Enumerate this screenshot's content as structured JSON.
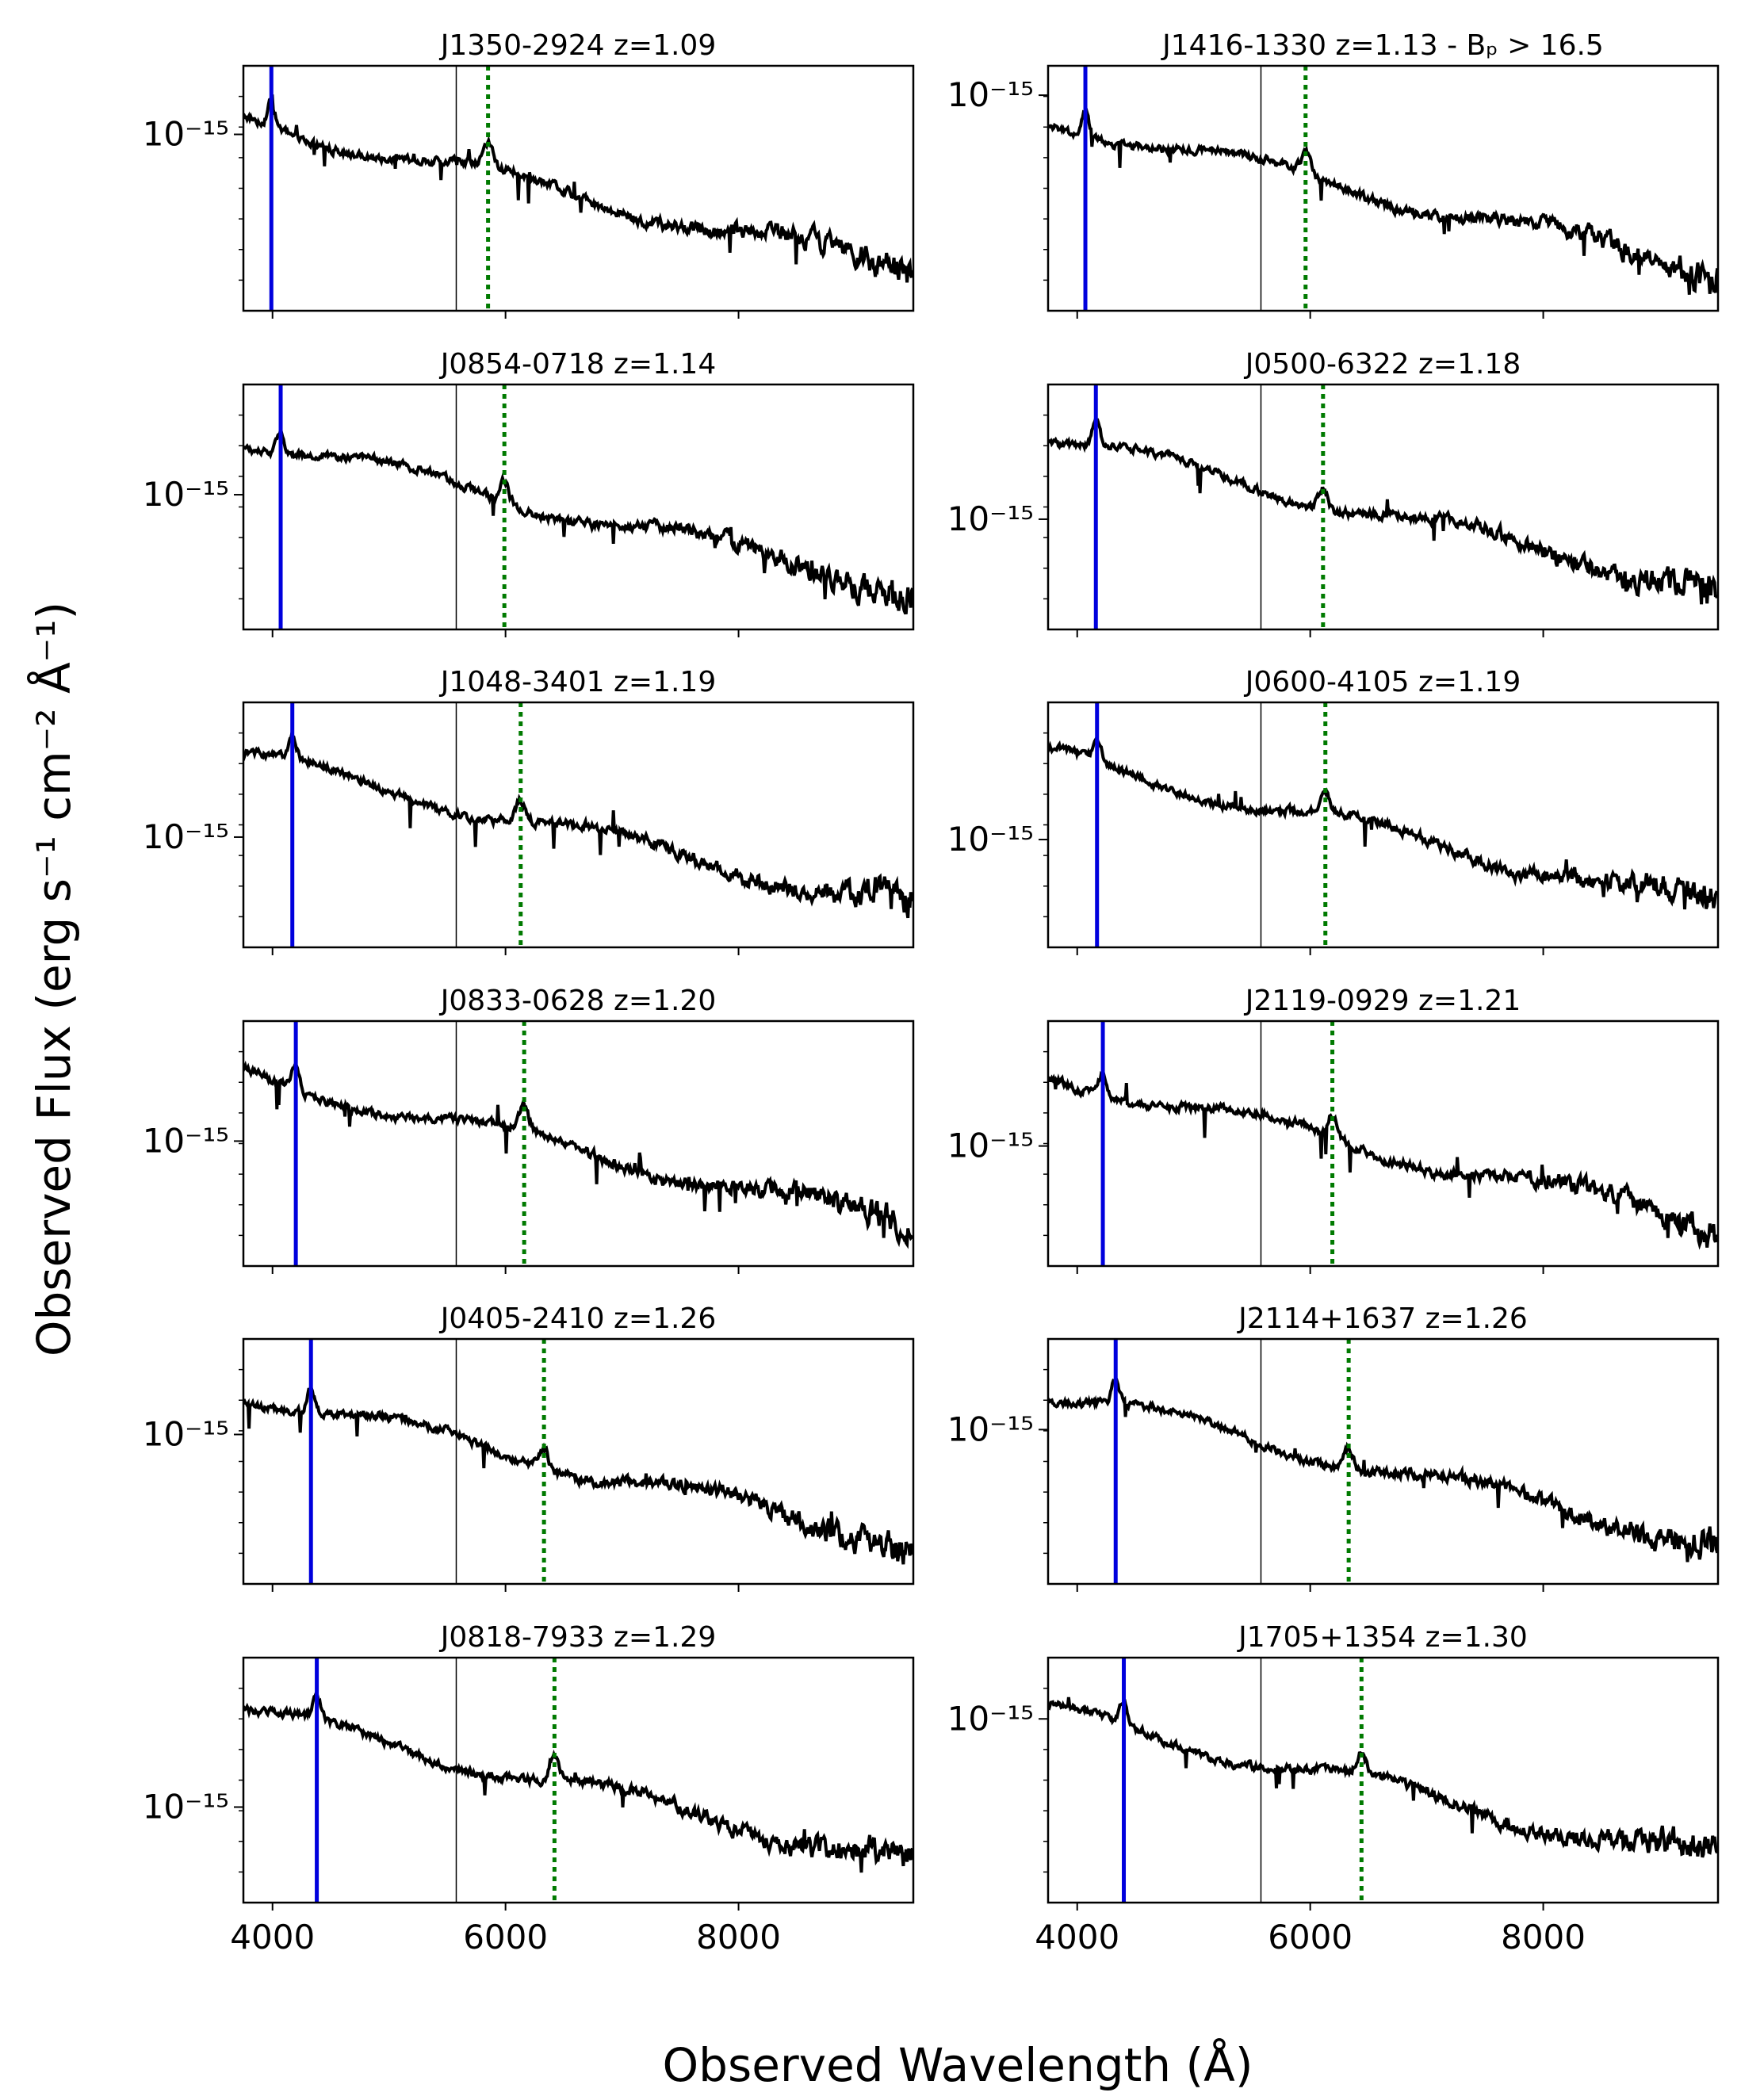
{
  "chart_data": {
    "type": "line",
    "xlabel": "Observed Wavelength (Å)",
    "ylabel": "Observed Flux (erg s⁻¹ cm⁻² Å⁻¹)",
    "xlim": [
      3750,
      9500
    ],
    "xticks": [
      4000,
      6000,
      8000
    ],
    "xtick_labels": [
      "4000",
      "6000",
      "8000"
    ],
    "ytick_label": "10⁻¹⁵",
    "reference_line_wavelength": 5577,
    "colors": {
      "spectrum": "#000000",
      "blue_line": "#0000dd",
      "dotted_line": "#007a00",
      "reference": "#000000"
    },
    "panels": [
      {
        "title": "J1350-2924 z=1.09",
        "z": 1.09,
        "blue": 3990,
        "green": 5850,
        "ytick_frac": 0.28
      },
      {
        "title": "J1416-1330 z=1.13  - Bₚ > 16.5",
        "z": 1.13,
        "blue": 4070,
        "green": 5960,
        "ytick_frac": 0.12
      },
      {
        "title": "J0854-0718 z=1.14",
        "z": 1.14,
        "blue": 4070,
        "green": 5990,
        "ytick_frac": 0.45
      },
      {
        "title": "J0500-6322 z=1.18",
        "z": 1.18,
        "blue": 4160,
        "green": 6110,
        "ytick_frac": 0.55
      },
      {
        "title": "J1048-3401 z=1.19",
        "z": 1.19,
        "blue": 4170,
        "green": 6130,
        "ytick_frac": 0.55
      },
      {
        "title": "J0600-4105 z=1.19",
        "z": 1.19,
        "blue": 4170,
        "green": 6130,
        "ytick_frac": 0.56
      },
      {
        "title": "J0833-0628 z=1.20",
        "z": 1.2,
        "blue": 4200,
        "green": 6160,
        "ytick_frac": 0.49
      },
      {
        "title": "J2119-0929 z=1.21",
        "z": 1.21,
        "blue": 4220,
        "green": 6190,
        "ytick_frac": 0.51
      },
      {
        "title": "J0405-2410 z=1.26",
        "z": 1.26,
        "blue": 4330,
        "green": 6330,
        "ytick_frac": 0.39
      },
      {
        "title": "J2114+1637 z=1.26",
        "z": 1.26,
        "blue": 4330,
        "green": 6330,
        "ytick_frac": 0.37
      },
      {
        "title": "J0818-7933 z=1.29",
        "z": 1.29,
        "blue": 4380,
        "green": 6420,
        "ytick_frac": 0.61
      },
      {
        "title": "J1705+1354 z=1.30",
        "z": 1.3,
        "blue": 4400,
        "green": 6440,
        "ytick_frac": 0.25
      }
    ]
  }
}
